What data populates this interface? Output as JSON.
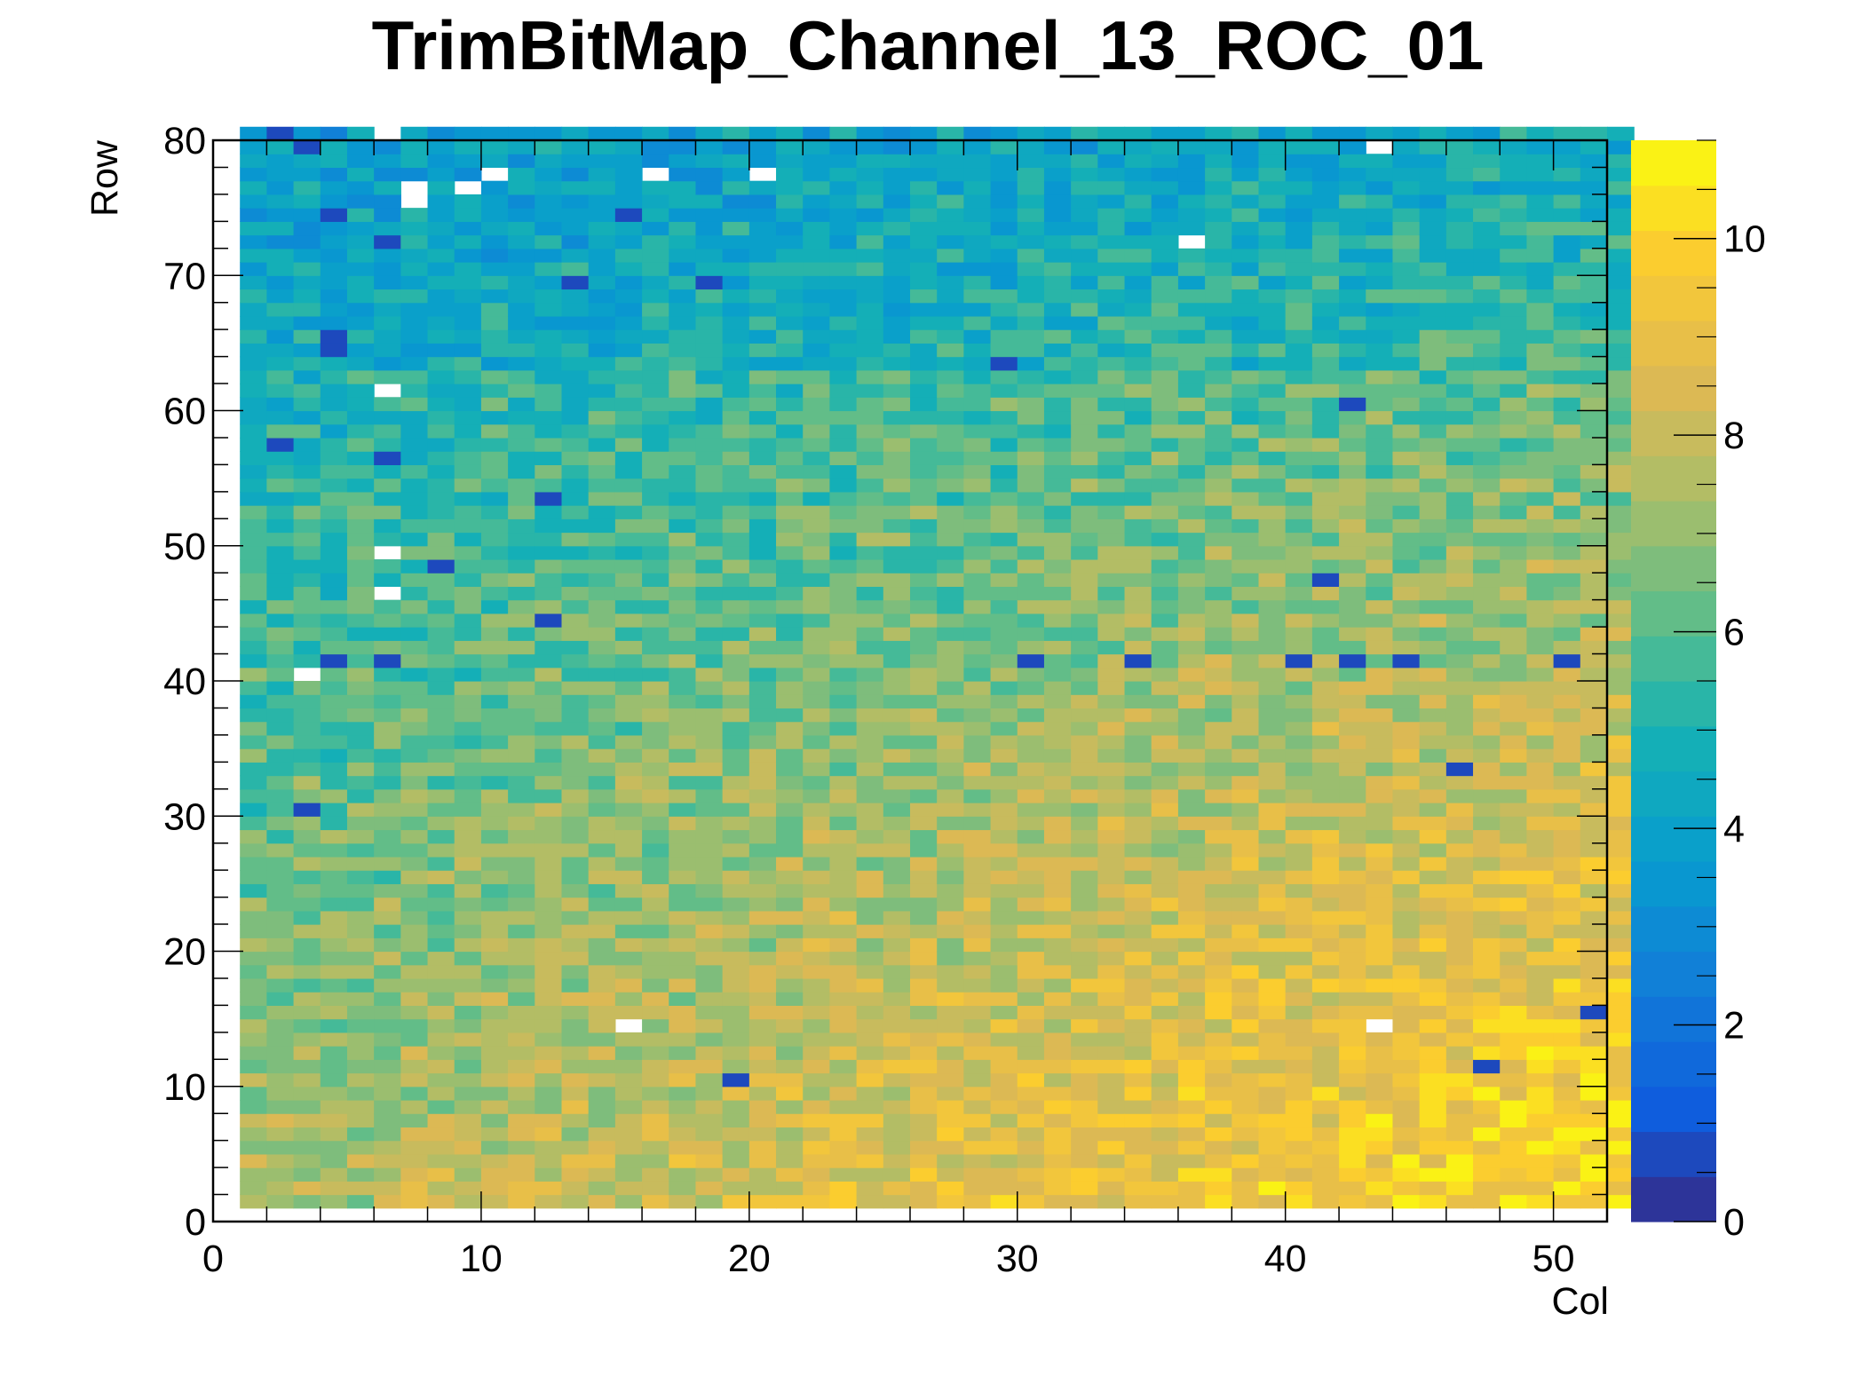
{
  "chart_data": {
    "type": "heatmap",
    "title": "TrimBitMap_Channel_13_ROC_01",
    "xlabel": "Col",
    "ylabel": "Row",
    "xlim": [
      0,
      52
    ],
    "ylim": [
      0,
      80
    ],
    "zlim": [
      0,
      11
    ],
    "x_ticks": [
      0,
      10,
      20,
      30,
      40,
      50
    ],
    "y_ticks": [
      0,
      10,
      20,
      30,
      40,
      50,
      60,
      70,
      80
    ],
    "z_ticks": [
      0,
      2,
      4,
      6,
      8,
      10
    ],
    "x_tick_labels": [
      "0",
      "10",
      "20",
      "30",
      "40",
      "50"
    ],
    "y_tick_labels": [
      "0",
      "10",
      "20",
      "30",
      "40",
      "50",
      "60",
      "70",
      "80"
    ],
    "z_tick_labels": [
      "0",
      "2",
      "4",
      "6",
      "8",
      "10"
    ],
    "grid": false,
    "colorbar": "right",
    "n_cols": 52,
    "n_rows": 80,
    "value_description": "trim bit value per pixel (0-15 scale shown 0-11); values rise from ~4 at top-left to ~10 at bottom-right",
    "regional_values": [
      {
        "cols": "1-28",
        "rows": "62-80",
        "typical": 4
      },
      {
        "cols": "29-51",
        "rows": "62-80",
        "typical": 5
      },
      {
        "cols": "1-28",
        "rows": "40-62",
        "typical": 5.5
      },
      {
        "cols": "29-51",
        "rows": "40-62",
        "typical": 6.5
      },
      {
        "cols": "1-28",
        "rows": "20-40",
        "typical": 6
      },
      {
        "cols": "29-40",
        "rows": "20-40",
        "typical": 7.5
      },
      {
        "cols": "41-51",
        "rows": "20-40",
        "typical": 8.5
      },
      {
        "cols": "1-28",
        "rows": "1-20",
        "typical": 7
      },
      {
        "cols": "29-40",
        "rows": "1-20",
        "typical": 8.5
      },
      {
        "cols": "41-51",
        "rows": "1-20",
        "typical": 9.5
      }
    ],
    "empty_cells": [
      [
        6,
        80
      ],
      [
        7,
        76
      ],
      [
        7,
        75
      ],
      [
        9,
        76
      ],
      [
        10,
        77
      ],
      [
        16,
        77
      ],
      [
        20,
        77
      ],
      [
        36,
        72
      ],
      [
        43,
        79
      ],
      [
        6,
        61
      ],
      [
        6,
        49
      ],
      [
        6,
        46
      ],
      [
        3,
        40
      ],
      [
        15,
        14
      ],
      [
        43,
        14
      ]
    ],
    "zero_cells": [
      [
        2,
        80
      ],
      [
        3,
        79
      ],
      [
        4,
        74
      ],
      [
        4,
        65
      ],
      [
        4,
        64
      ],
      [
        6,
        72
      ],
      [
        12,
        44
      ],
      [
        12,
        53
      ],
      [
        15,
        74
      ],
      [
        19,
        10
      ],
      [
        29,
        63
      ],
      [
        30,
        41
      ],
      [
        34,
        41
      ],
      [
        40,
        41
      ],
      [
        41,
        47
      ],
      [
        42,
        41
      ],
      [
        44,
        41
      ],
      [
        46,
        33
      ],
      [
        47,
        11
      ],
      [
        50,
        41
      ],
      [
        51,
        15
      ],
      [
        3,
        30
      ],
      [
        4,
        41
      ],
      [
        6,
        41
      ],
      [
        6,
        56
      ],
      [
        8,
        48
      ],
      [
        2,
        57
      ],
      [
        42,
        60
      ],
      [
        13,
        69
      ],
      [
        18,
        69
      ]
    ]
  }
}
